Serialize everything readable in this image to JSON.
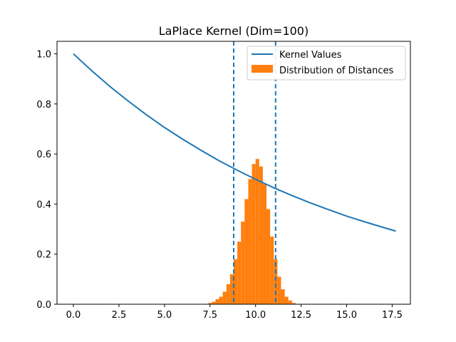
{
  "chart_data": {
    "type": "line",
    "title": "LaPlace Kernel (Dim=100)",
    "xlabel": "",
    "ylabel": "",
    "xlim": [
      -0.9,
      18.5
    ],
    "ylim": [
      0,
      1.05
    ],
    "x_ticks": [
      0,
      2.5,
      5,
      7.5,
      10,
      12.5,
      15,
      17.5
    ],
    "x_tick_labels": [
      "0.0",
      "2.5",
      "5.0",
      "7.5",
      "10.0",
      "12.5",
      "15.0",
      "17.5"
    ],
    "y_ticks": [
      0,
      0.2,
      0.4,
      0.6,
      0.8,
      1.0
    ],
    "y_tick_labels": [
      "0.0",
      "0.2",
      "0.4",
      "0.6",
      "0.8",
      "1.0"
    ],
    "grid": false,
    "legend_position": "top-right",
    "series": [
      {
        "name": "Kernel Values",
        "kind": "line",
        "color": "#1f77b4",
        "x": [
          0,
          1,
          2,
          3,
          4,
          5,
          6,
          7,
          8,
          9,
          10,
          11,
          12,
          13,
          14,
          15,
          16,
          17,
          17.7
        ],
        "y": [
          1.0,
          0.933,
          0.87,
          0.812,
          0.757,
          0.706,
          0.659,
          0.615,
          0.573,
          0.535,
          0.499,
          0.465,
          0.434,
          0.405,
          0.378,
          0.352,
          0.329,
          0.307,
          0.292
        ]
      },
      {
        "name": "Distribution of Distances",
        "kind": "histogram",
        "color": "#ff7f0e",
        "bin_centers": [
          7.5,
          7.7,
          7.9,
          8.1,
          8.3,
          8.5,
          8.7,
          8.9,
          9.1,
          9.3,
          9.5,
          9.7,
          9.9,
          10.1,
          10.3,
          10.5,
          10.7,
          10.9,
          11.1,
          11.3,
          11.5,
          11.7,
          11.9,
          12.1
        ],
        "values": [
          0.005,
          0.01,
          0.02,
          0.03,
          0.05,
          0.08,
          0.12,
          0.18,
          0.25,
          0.33,
          0.42,
          0.5,
          0.56,
          0.58,
          0.55,
          0.48,
          0.38,
          0.27,
          0.18,
          0.11,
          0.06,
          0.03,
          0.015,
          0.005
        ]
      }
    ],
    "vertical_lines": [
      {
        "x": 8.8,
        "style": "dashed",
        "color": "#1f77b4"
      },
      {
        "x": 11.1,
        "style": "dashed",
        "color": "#1f77b4"
      }
    ]
  }
}
